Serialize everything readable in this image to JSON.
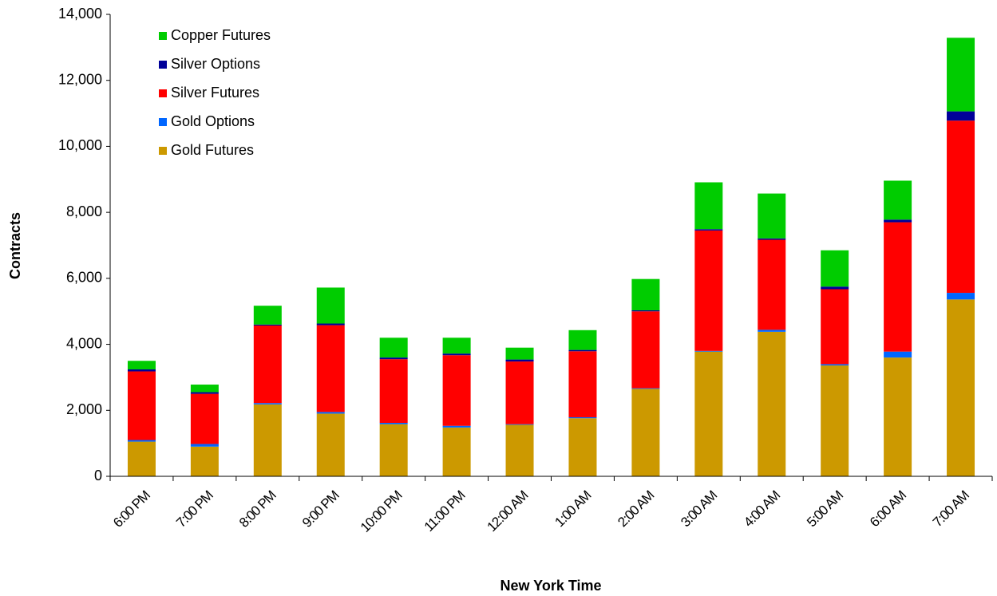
{
  "chart_data": {
    "type": "stacked_bar",
    "x_label": "New York Time",
    "y_label": "Contracts",
    "categories": [
      "6:00 PM",
      "7:00 PM",
      "8:00 PM",
      "9:00 PM",
      "10:00 PM",
      "11:00 PM",
      "12:00 AM",
      "1:00 AM",
      "2:00 AM",
      "3:00 AM",
      "4:00 AM",
      "5:00 AM",
      "6:00 AM",
      "7:00 AM"
    ],
    "series": [
      {
        "name": "Gold Futures",
        "color": "#cc9900",
        "values": [
          1050,
          900,
          2180,
          1900,
          1580,
          1480,
          1560,
          1760,
          2650,
          3780,
          4380,
          3360,
          3600,
          5360
        ]
      },
      {
        "name": "Gold Options",
        "color": "#0066ff",
        "values": [
          50,
          80,
          40,
          50,
          40,
          50,
          20,
          30,
          20,
          20,
          60,
          40,
          180,
          200
        ]
      },
      {
        "name": "Silver Futures",
        "color": "#ff0000",
        "values": [
          2080,
          1520,
          2350,
          2630,
          1930,
          2140,
          1900,
          2000,
          2330,
          3650,
          2730,
          2270,
          3920,
          5220
        ]
      },
      {
        "name": "Silver Options",
        "color": "#000099",
        "values": [
          60,
          50,
          30,
          50,
          50,
          50,
          60,
          40,
          30,
          40,
          40,
          80,
          80,
          280
        ]
      },
      {
        "name": "Copper Futures",
        "color": "#00cc00",
        "values": [
          260,
          230,
          570,
          1090,
          600,
          480,
          360,
          600,
          950,
          1420,
          1360,
          1100,
          1180,
          2230
        ]
      }
    ],
    "ylim": [
      0,
      14000
    ],
    "yticks": [
      0,
      {
        "value": 2000,
        "label": "2,000"
      },
      {
        "value": 4000,
        "label": "4,000"
      },
      {
        "value": 6000,
        "label": "6,000"
      },
      {
        "value": 8000,
        "label": "8,000"
      },
      {
        "value": 10000,
        "label": "10,000"
      },
      {
        "value": 12000,
        "label": "12,000"
      },
      {
        "value": 14000,
        "label": "14,000"
      }
    ],
    "legend": "upper left",
    "grid": false
  }
}
